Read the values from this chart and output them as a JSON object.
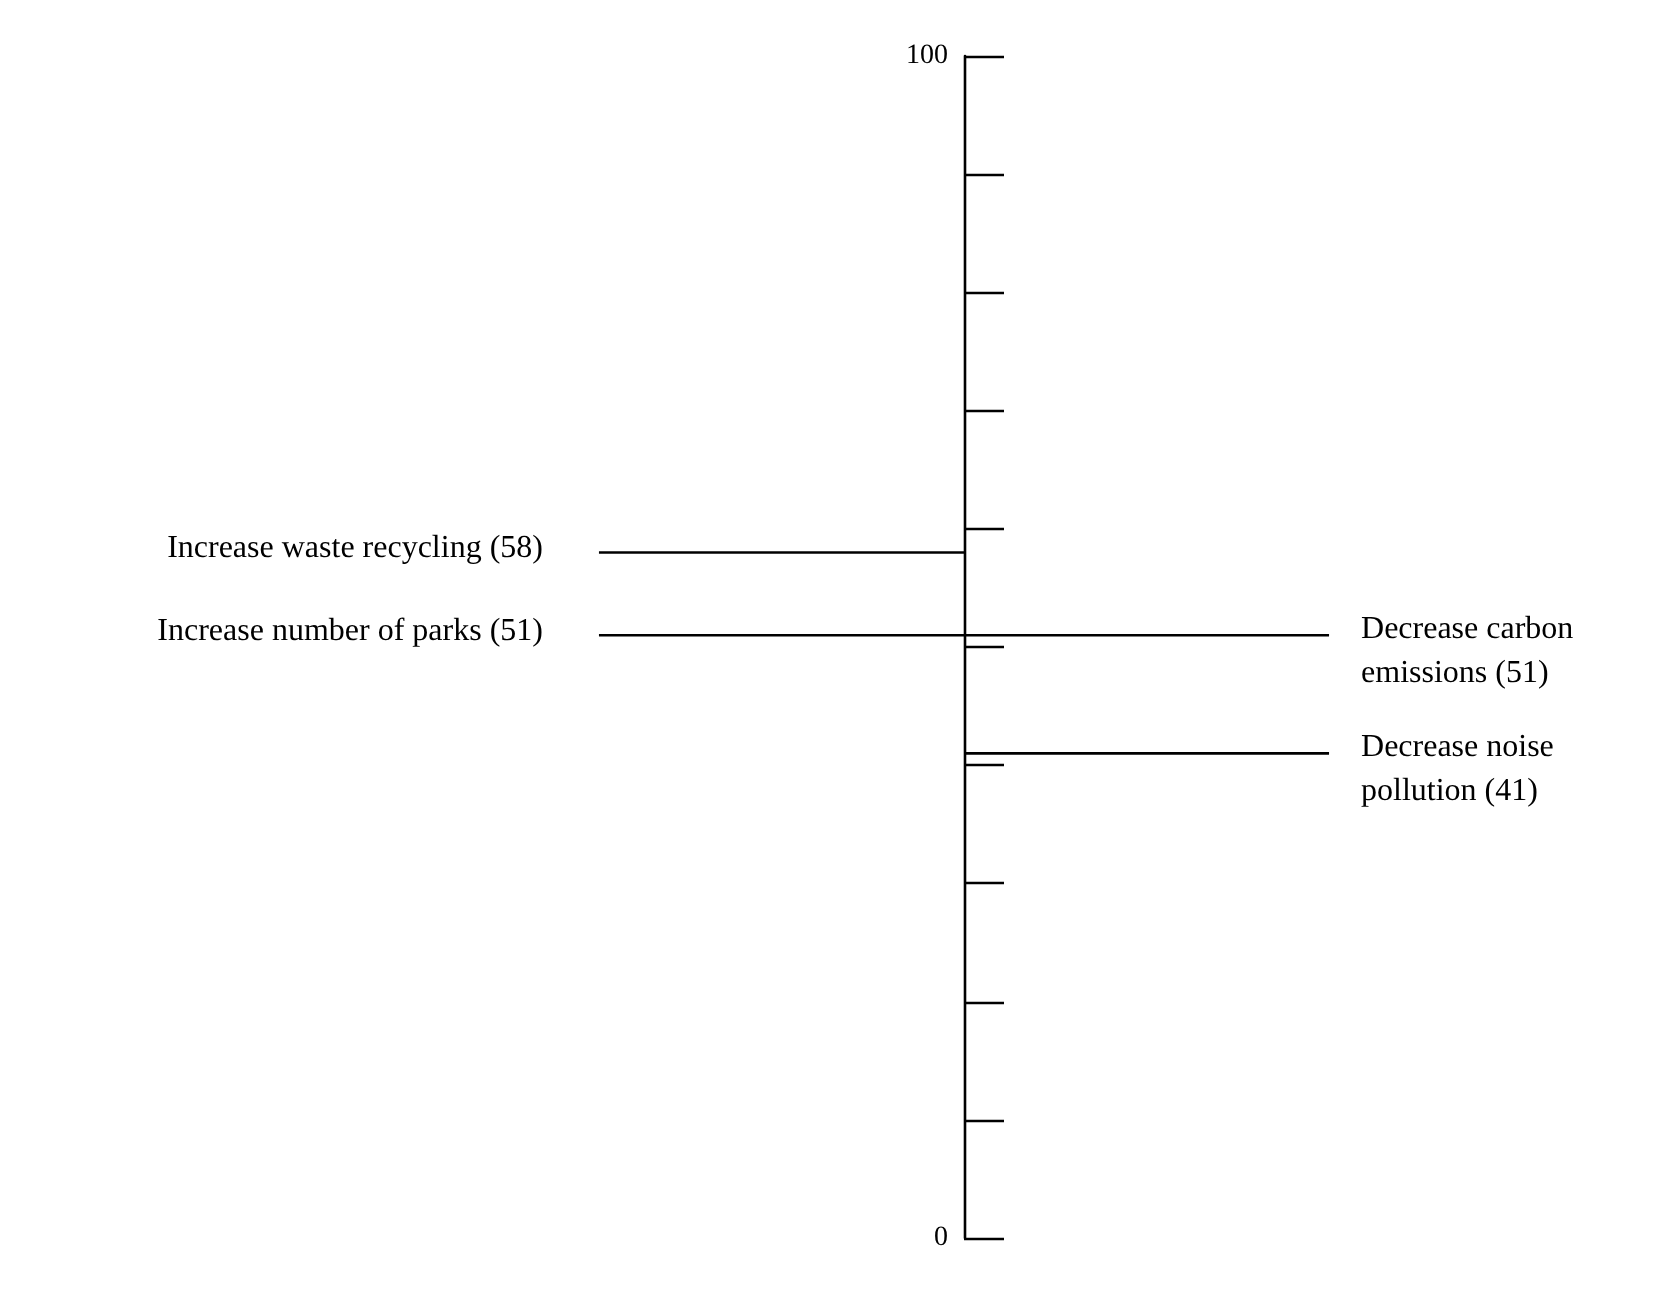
{
  "chart_data": {
    "type": "other",
    "categories": [
      "Increase waste recycling",
      "Increase number of parks",
      "Decrease carbon emissions",
      "Decrease noise pollution"
    ],
    "values": [
      58,
      51,
      51,
      41
    ],
    "value_labels": [
      "(58)",
      "(51)",
      "(51)",
      "(41)"
    ],
    "color": "#000000",
    "annotations": [
      "0",
      "100"
    ]
  }
}
